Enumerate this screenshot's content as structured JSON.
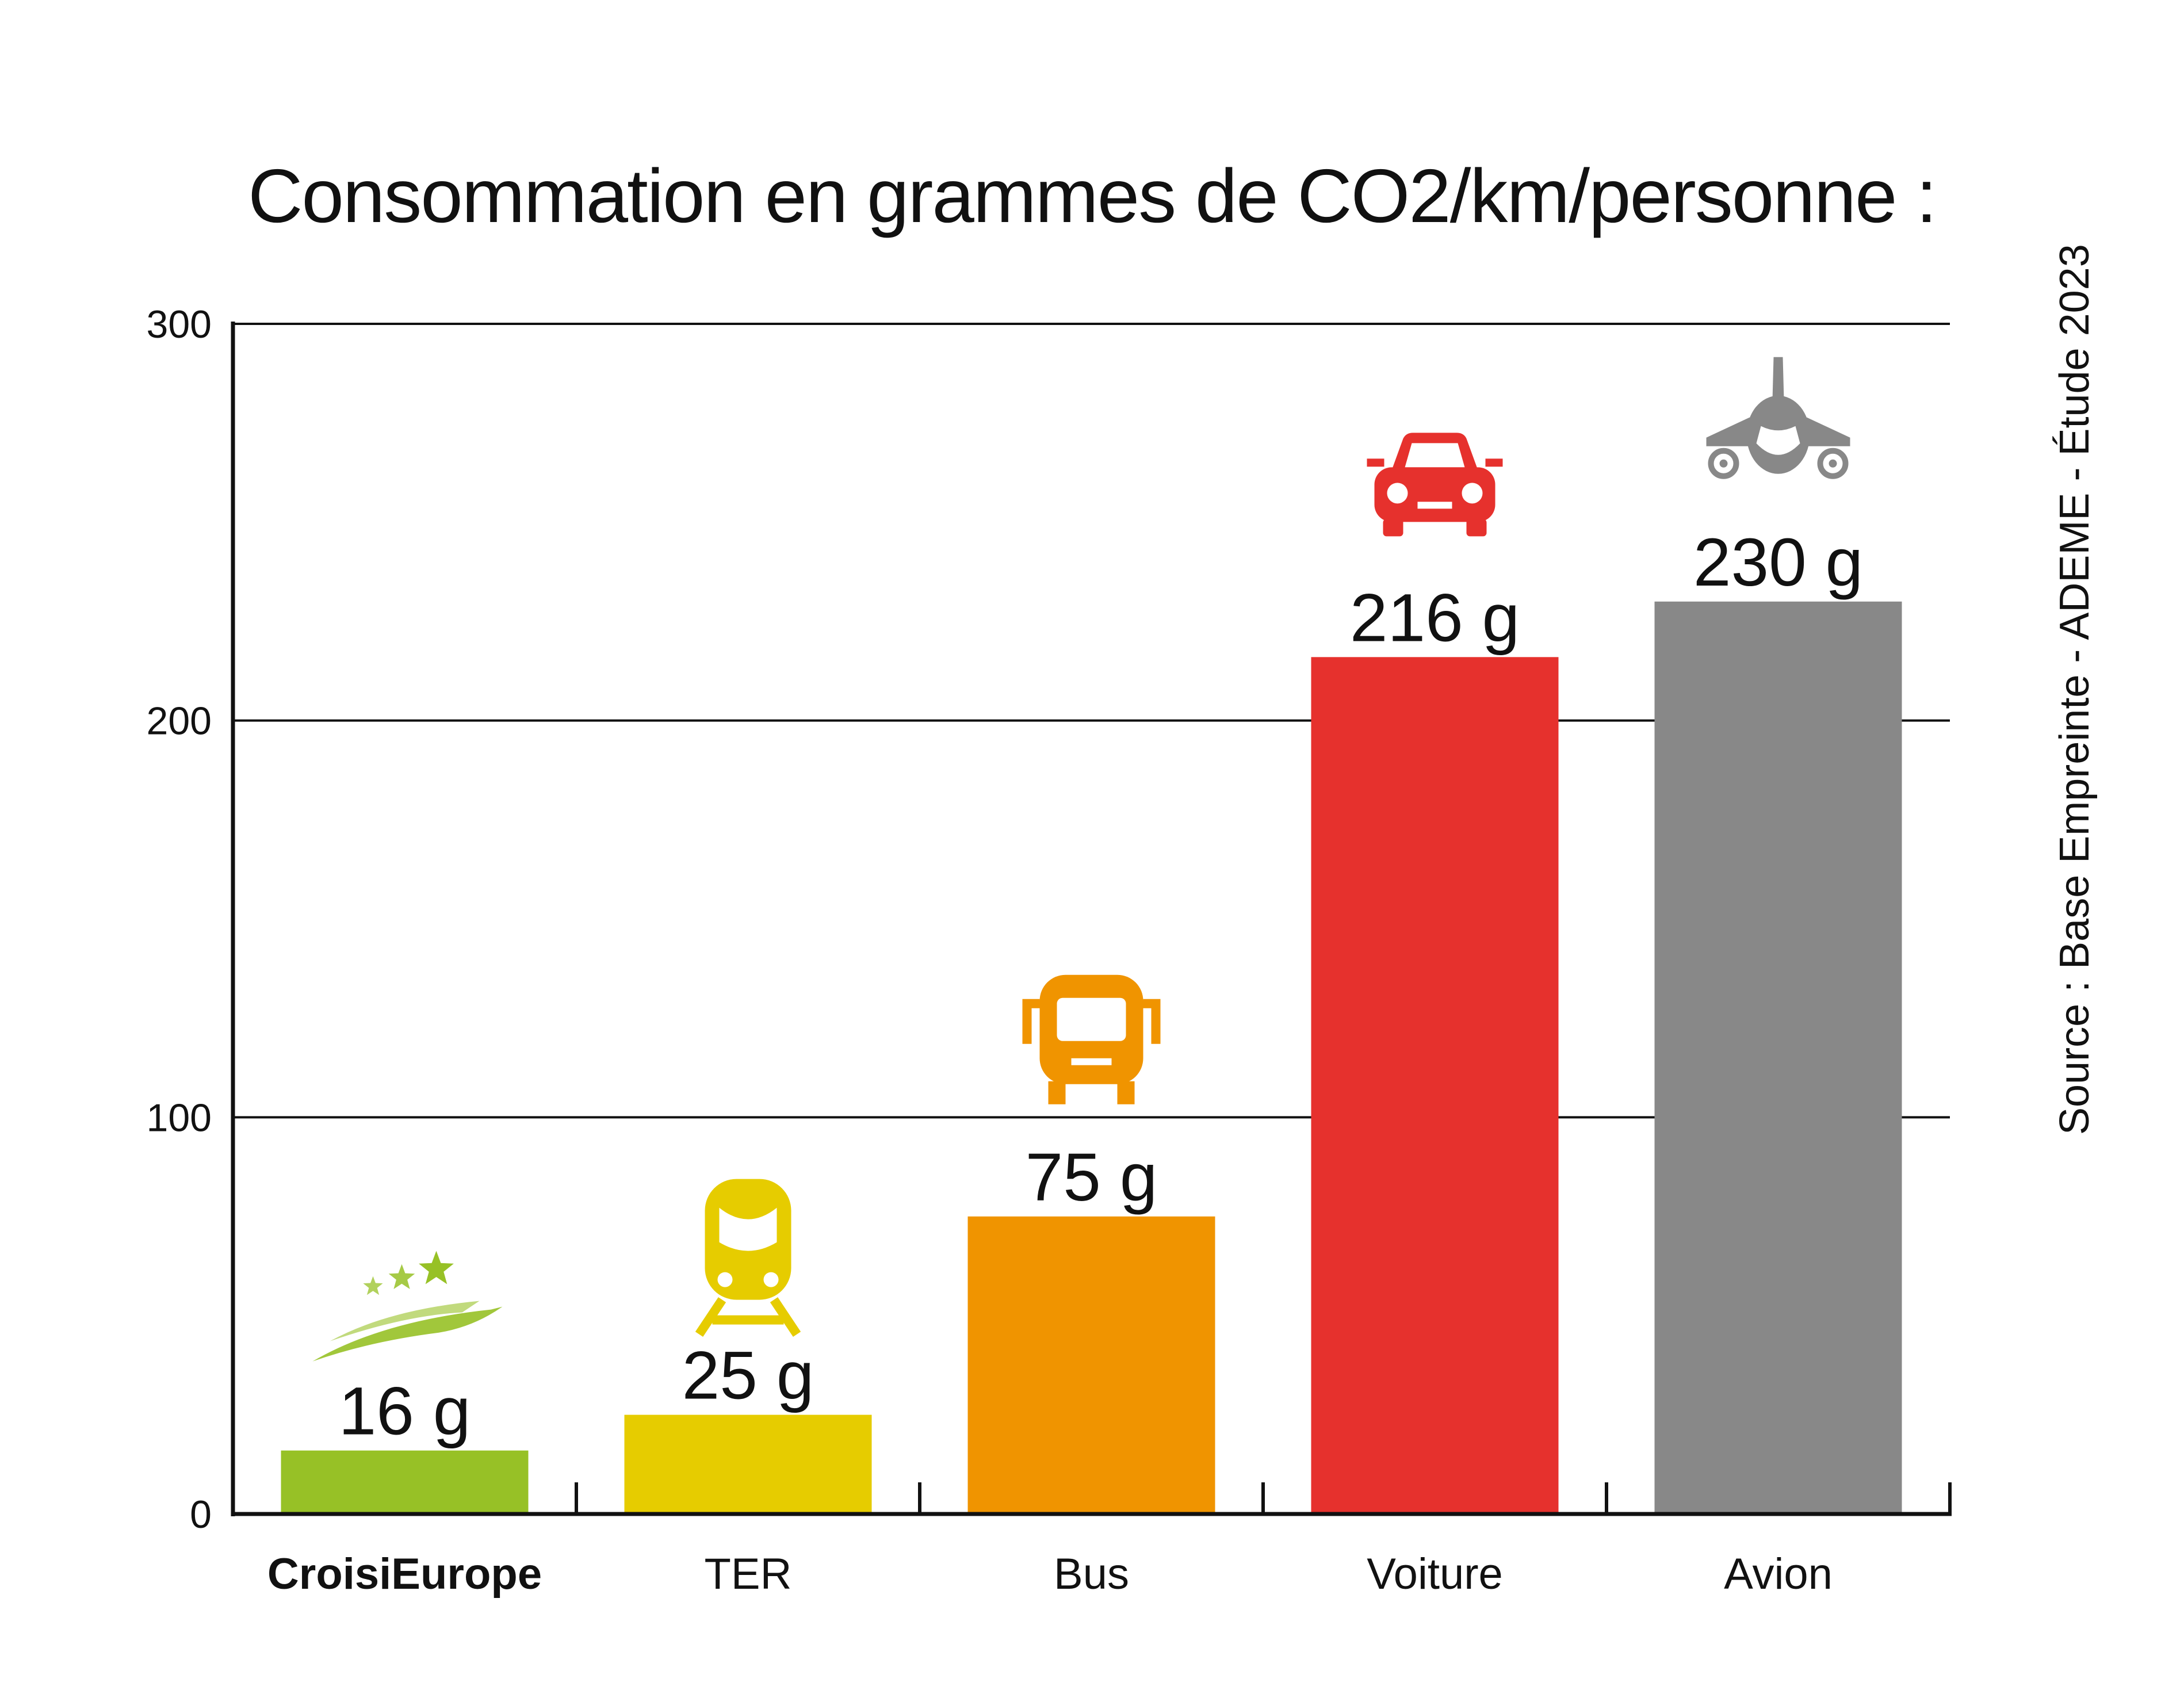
{
  "chart_data": {
    "type": "bar",
    "title": "Consommation en grammes de CO2/km/personne :",
    "categories": [
      "CroisiEurope",
      "TER",
      "Bus",
      "Voiture",
      "Avion"
    ],
    "values": [
      16,
      25,
      75,
      216,
      230
    ],
    "value_labels": [
      "16 g",
      "25 g",
      "75 g",
      "216 g",
      "230 g"
    ],
    "colors": [
      "#97c126",
      "#e6cc00",
      "#f09400",
      "#e6312d",
      "#888888"
    ],
    "icons": [
      "cruise-ship-icon",
      "train-icon",
      "bus-icon",
      "car-icon",
      "plane-icon"
    ],
    "ylim": [
      0,
      300
    ],
    "yticks": [
      0,
      100,
      200,
      300
    ],
    "grid": true,
    "legend": "none",
    "highlight_category": "CroisiEurope"
  },
  "source": "Source : Base Empreinte - ADEME - Étude 2023"
}
